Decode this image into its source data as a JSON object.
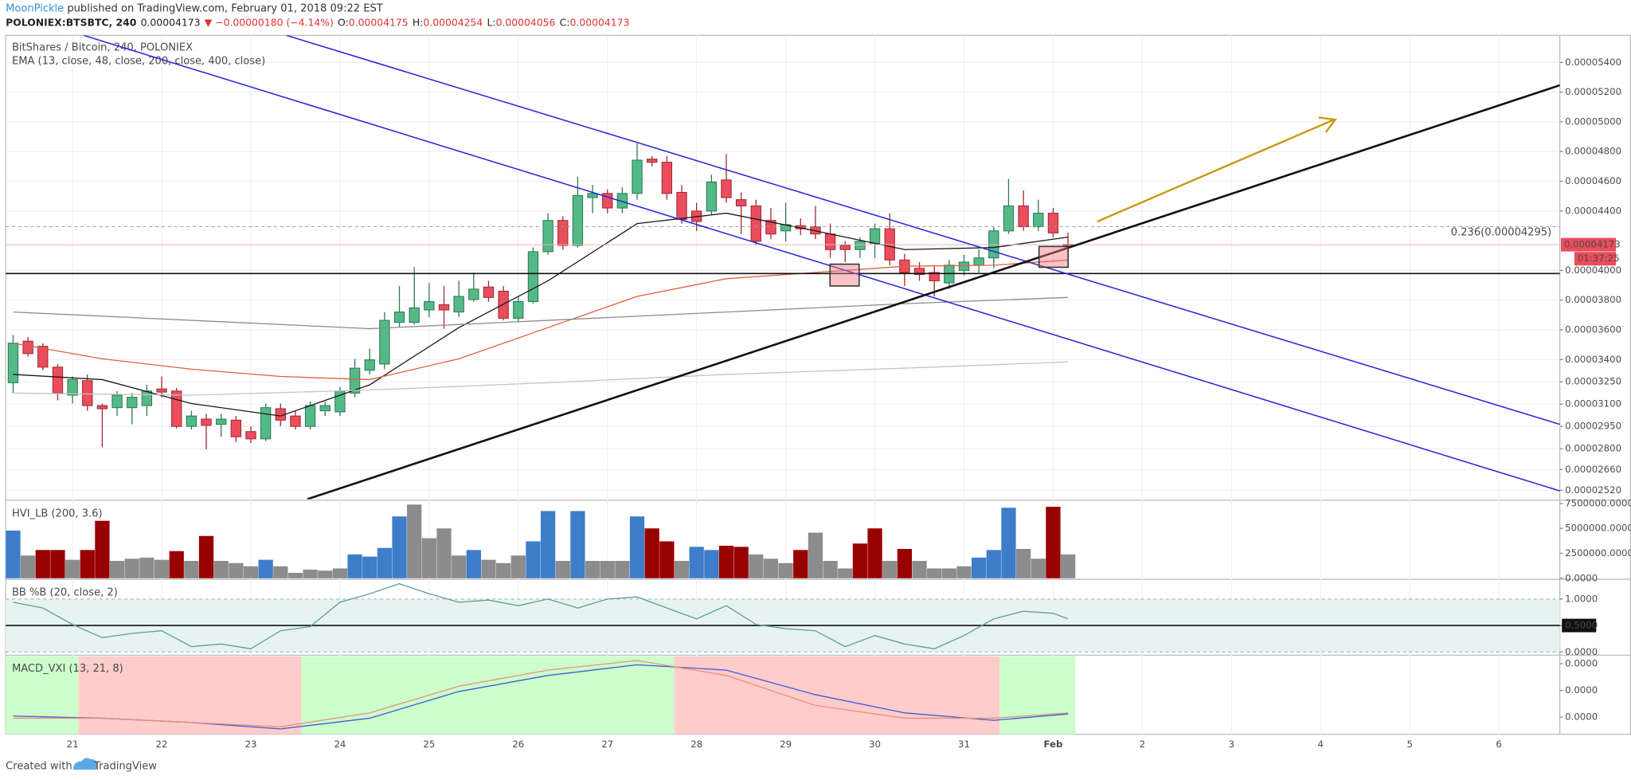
{
  "header": {
    "author": "MoonPickle",
    "published": " published on TradingView.com, February 01, 2018 09:22 EST",
    "symbol": "POLONIEX:BTSBTC, 240",
    "last": "0.00004173",
    "change": "▼ −0.00000180 (−4.14%)",
    "ohlc": [
      {
        "label": "O:",
        "value": "0.00004175"
      },
      {
        "label": "H:",
        "value": "0.00004254"
      },
      {
        "label": "L:",
        "value": "0.00004056"
      },
      {
        "label": "C:",
        "value": "0.00004173"
      }
    ]
  },
  "footer": {
    "created": "Created with",
    "brand": "TradingView"
  },
  "chart_data": [
    {
      "type": "candlestick",
      "title": "BitShares / Bitcoin, 240, POLONIEX",
      "subtitle": "EMA (13, close, 48, close, 200, close, 400, close)",
      "open": [
        3.244e-05,
        3.524e-05,
        3.489e-05,
        3.349e-05,
        3.16e-05,
        3.258e-05,
        3.09e-05,
        3.076e-05,
        3.076e-05,
        3.09e-05,
        3.202e-05,
        3.188e-05,
        2.95e-05,
        2.999e-05,
        2.964e-05,
        2.992e-05,
        2.915e-05,
        2.866e-05,
        3.069e-05,
        3.02e-05,
        2.95e-05,
        3.055e-05,
        3.048e-05,
        3.174e-05,
        3.328e-05,
        3.37e-05,
        3.65e-05,
        3.65e-05,
        3.734e-05,
        3.769e-05,
        3.72e-05,
        3.804e-05,
        3.888e-05,
        3.86e-05,
        3.678e-05,
        3.79e-05,
        4.126e-05,
        4.336e-05,
        4.168e-05,
        4.49e-05,
        4.518e-05,
        4.42e-05,
        4.518e-05,
        4.749e-05,
        4.728e-05,
        4.525e-05,
        4.399e-05,
        4.399e-05,
        4.609e-05,
        4.476e-05,
        4.434e-05,
        4.336e-05,
        4.266e-05,
        4.301e-05,
        4.294e-05,
        4.245e-05,
        4.168e-05,
        4.14e-05,
        4.182e-05,
        4.28e-05,
        4.07e-05,
        4.014e-05,
        3.986e-05,
        3.916e-05,
        4e-05,
        4.035e-05,
        4.084e-05,
        4.266e-05,
        4.434e-05,
        4.294e-05,
        4.385e-05,
        4.175e-05
      ],
      "high": [
        3.566e-05,
        3.552e-05,
        3.51e-05,
        3.37e-05,
        3.286e-05,
        3.3e-05,
        3.104e-05,
        3.188e-05,
        3.174e-05,
        3.23e-05,
        3.286e-05,
        3.209e-05,
        3.055e-05,
        3.034e-05,
        3.034e-05,
        3.02e-05,
        2.95e-05,
        3.104e-05,
        3.104e-05,
        3.055e-05,
        3.118e-05,
        3.118e-05,
        3.216e-05,
        3.405e-05,
        3.475e-05,
        3.72e-05,
        3.895e-05,
        4.021e-05,
        3.916e-05,
        3.895e-05,
        3.93e-05,
        3.986e-05,
        3.93e-05,
        3.895e-05,
        3.825e-05,
        4.154e-05,
        4.385e-05,
        4.364e-05,
        4.63e-05,
        4.574e-05,
        4.546e-05,
        4.56e-05,
        4.854e-05,
        4.77e-05,
        4.77e-05,
        4.574e-05,
        4.455e-05,
        4.644e-05,
        4.784e-05,
        4.525e-05,
        4.476e-05,
        4.42e-05,
        4.455e-05,
        4.35e-05,
        4.434e-05,
        4.315e-05,
        4.196e-05,
        4.224e-05,
        4.315e-05,
        4.385e-05,
        4.112e-05,
        4.056e-05,
        4.035e-05,
        4.07e-05,
        4.105e-05,
        4.14e-05,
        4.294e-05,
        4.616e-05,
        4.539e-05,
        4.476e-05,
        4.42e-05,
        4.254e-05
      ],
      "low": [
        3.174e-05,
        3.419e-05,
        3.328e-05,
        3.125e-05,
        3.104e-05,
        3.055e-05,
        2.81e-05,
        3.02e-05,
        2.964e-05,
        3.02e-05,
        3.146e-05,
        2.936e-05,
        2.929e-05,
        2.796e-05,
        2.88e-05,
        2.845e-05,
        2.838e-05,
        2.852e-05,
        2.95e-05,
        2.929e-05,
        2.929e-05,
        3.02e-05,
        3.02e-05,
        3.146e-05,
        3.3e-05,
        3.335e-05,
        3.615e-05,
        3.636e-05,
        3.685e-05,
        3.608e-05,
        3.685e-05,
        3.79e-05,
        3.79e-05,
        3.664e-05,
        3.65e-05,
        3.776e-05,
        4.105e-05,
        4.14e-05,
        4.154e-05,
        4.385e-05,
        4.385e-05,
        4.385e-05,
        4.476e-05,
        4.7e-05,
        4.476e-05,
        4.315e-05,
        4.266e-05,
        4.371e-05,
        4.455e-05,
        4.245e-05,
        4.168e-05,
        4.21e-05,
        4.196e-05,
        4.238e-05,
        4.21e-05,
        4.084e-05,
        4.056e-05,
        4.084e-05,
        4.084e-05,
        4.035e-05,
        3.895e-05,
        3.93e-05,
        3.825e-05,
        3.874e-05,
        3.965e-05,
        3.986e-05,
        4.014e-05,
        4.245e-05,
        4.266e-05,
        4.266e-05,
        4.224e-05,
        4.056e-05
      ],
      "close": [
        3.51e-05,
        3.44e-05,
        3.349e-05,
        3.174e-05,
        3.265e-05,
        3.09e-05,
        3.069e-05,
        3.16e-05,
        3.146e-05,
        3.188e-05,
        3.181e-05,
        2.95e-05,
        3.02e-05,
        2.957e-05,
        2.999e-05,
        2.88e-05,
        2.866e-05,
        3.076e-05,
        2.992e-05,
        2.95e-05,
        3.09e-05,
        3.09e-05,
        3.188e-05,
        3.342e-05,
        3.398e-05,
        3.664e-05,
        3.72e-05,
        3.748e-05,
        3.79e-05,
        3.734e-05,
        3.825e-05,
        3.874e-05,
        3.818e-05,
        3.678e-05,
        3.79e-05,
        4.126e-05,
        4.336e-05,
        4.168e-05,
        4.504e-05,
        4.518e-05,
        4.42e-05,
        4.518e-05,
        4.742e-05,
        4.728e-05,
        4.518e-05,
        4.343e-05,
        4.329e-05,
        4.595e-05,
        4.49e-05,
        4.434e-05,
        4.196e-05,
        4.245e-05,
        4.308e-05,
        4.28e-05,
        4.245e-05,
        4.14e-05,
        4.14e-05,
        4.196e-05,
        4.28e-05,
        4.07e-05,
        3.986e-05,
        3.972e-05,
        3.93e-05,
        4.035e-05,
        4.056e-05,
        4.084e-05,
        4.266e-05,
        4.434e-05,
        4.294e-05,
        4.385e-05,
        4.252e-05,
        4.173e-05
      ],
      "up_color": "#53b987",
      "down_color": "#eb4d5c",
      "overlays": [
        {
          "color": "#1a1a1a",
          "x": [
            0,
            6,
            12,
            18,
            24,
            30,
            36,
            42,
            48,
            54,
            60,
            66,
            71
          ],
          "values": [
            3.3e-05,
            3.265e-05,
            3.104e-05,
            3.02e-05,
            3.23e-05,
            3.615e-05,
            3.93e-05,
            4.315e-05,
            4.385e-05,
            4.266e-05,
            4.14e-05,
            4.154e-05,
            4.224e-05
          ]
        },
        {
          "color": "#e0603c",
          "x": [
            0,
            6,
            12,
            18,
            24,
            30,
            36,
            42,
            48,
            54,
            60,
            66,
            71
          ],
          "values": [
            3.51e-05,
            3.405e-05,
            3.335e-05,
            3.286e-05,
            3.265e-05,
            3.405e-05,
            3.615e-05,
            3.825e-05,
            3.944e-05,
            3.986e-05,
            4.028e-05,
            4.035e-05,
            4.07e-05
          ]
        },
        {
          "color": "#8c8c8c",
          "x": [
            0,
            12,
            24,
            36,
            48,
            60,
            71
          ],
          "values": [
            3.72e-05,
            3.664e-05,
            3.608e-05,
            3.664e-05,
            3.72e-05,
            3.776e-05,
            3.818e-05
          ]
        },
        {
          "color": "#c4c4c4",
          "x": [
            0,
            12,
            24,
            36,
            48,
            60,
            71
          ],
          "values": [
            3.174e-05,
            3.16e-05,
            3.195e-05,
            3.244e-05,
            3.3e-05,
            3.342e-05,
            3.384e-05
          ]
        }
      ],
      "annotations": [
        {
          "text": "0.236(0.00004295)",
          "value": 4.295e-05
        }
      ],
      "last_price_label": "0.00004173",
      "countdown": "01:37:25",
      "xlim": [
        -0.5,
        104.1
      ],
      "xticks": [
        {
          "value": 4,
          "label": "21"
        },
        {
          "value": 10,
          "label": "22"
        },
        {
          "value": 16,
          "label": "23"
        },
        {
          "value": 22,
          "label": "24"
        },
        {
          "value": 28,
          "label": "25"
        },
        {
          "value": 34,
          "label": "26"
        },
        {
          "value": 40,
          "label": "27"
        },
        {
          "value": 46,
          "label": "28"
        },
        {
          "value": 52,
          "label": "29"
        },
        {
          "value": 58,
          "label": "30"
        },
        {
          "value": 64,
          "label": "31"
        },
        {
          "value": 70,
          "label": "Feb"
        },
        {
          "value": 76,
          "label": "2"
        },
        {
          "value": 82,
          "label": "3"
        },
        {
          "value": 88,
          "label": "4"
        },
        {
          "value": 94,
          "label": "5"
        },
        {
          "value": 100,
          "label": "6"
        }
      ],
      "ylim": [
        2.46e-05,
        5.582e-05
      ],
      "yticks": [
        {
          "value": 5.4e-05,
          "label": "0.00005400"
        },
        {
          "value": 5.2e-05,
          "label": "0.00005200"
        },
        {
          "value": 5e-05,
          "label": "0.00005000"
        },
        {
          "value": 4.8e-05,
          "label": "0.00004800"
        },
        {
          "value": 4.6e-05,
          "label": "0.00004600"
        },
        {
          "value": 4.4e-05,
          "label": "0.00004400"
        },
        {
          "value": 4e-05,
          "label": "0.00004000"
        },
        {
          "value": 3.8e-05,
          "label": "0.00003800"
        },
        {
          "value": 3.6e-05,
          "label": "0.00003600"
        },
        {
          "value": 3.4e-05,
          "label": "0.00003400"
        },
        {
          "value": 3.25e-05,
          "label": "0.00003250"
        },
        {
          "value": 3.1e-05,
          "label": "0.00003100"
        },
        {
          "value": 2.95e-05,
          "label": "0.00002950"
        },
        {
          "value": 2.8e-05,
          "label": "0.00002800"
        },
        {
          "value": 2.66e-05,
          "label": "0.00002660"
        },
        {
          "value": 2.52e-05,
          "label": "0.00002520"
        }
      ],
      "grid": true
    },
    {
      "type": "bar",
      "title": "HVI_LB (200, 3.6)",
      "values": [
        4780000,
        2280000,
        2830000,
        2830000,
        1850000,
        2830000,
        5760000,
        1740000,
        1960000,
        2070000,
        1850000,
        2720000,
        1740000,
        4240000,
        1740000,
        1520000,
        1200000,
        1850000,
        1200000,
        540000,
        870000,
        760000,
        980000,
        2390000,
        2170000,
        3040000,
        6200000,
        7390000,
        4020000,
        5000000,
        2280000,
        2830000,
        1850000,
        1520000,
        2280000,
        3700000,
        6740000,
        1740000,
        6740000,
        1740000,
        1740000,
        1740000,
        6200000,
        5000000,
        3700000,
        1740000,
        3150000,
        2830000,
        3260000,
        3150000,
        2390000,
        1960000,
        1520000,
        2830000,
        4570000,
        1740000,
        980000,
        3480000,
        5000000,
        1740000,
        2940000,
        1740000,
        980000,
        980000,
        1200000,
        2070000,
        2830000,
        7070000,
        2940000,
        1960000,
        7170000,
        2390000
      ],
      "colors": [
        "#3d7dca",
        "#8c8c8c",
        "#990000",
        "#990000",
        "#8c8c8c",
        "#990000",
        "#990000",
        "#8c8c8c",
        "#8c8c8c",
        "#8c8c8c",
        "#8c8c8c",
        "#990000",
        "#8c8c8c",
        "#990000",
        "#8c8c8c",
        "#8c8c8c",
        "#8c8c8c",
        "#3d7dca",
        "#8c8c8c",
        "#8c8c8c",
        "#8c8c8c",
        "#8c8c8c",
        "#8c8c8c",
        "#3d7dca",
        "#3d7dca",
        "#3d7dca",
        "#3d7dca",
        "#8c8c8c",
        "#8c8c8c",
        "#8c8c8c",
        "#8c8c8c",
        "#3d7dca",
        "#8c8c8c",
        "#8c8c8c",
        "#8c8c8c",
        "#3d7dca",
        "#3d7dca",
        "#8c8c8c",
        "#3d7dca",
        "#8c8c8c",
        "#8c8c8c",
        "#8c8c8c",
        "#3d7dca",
        "#990000",
        "#990000",
        "#8c8c8c",
        "#3d7dca",
        "#3d7dca",
        "#990000",
        "#990000",
        "#8c8c8c",
        "#8c8c8c",
        "#8c8c8c",
        "#990000",
        "#8c8c8c",
        "#8c8c8c",
        "#8c8c8c",
        "#990000",
        "#990000",
        "#8c8c8c",
        "#990000",
        "#8c8c8c",
        "#8c8c8c",
        "#8c8c8c",
        "#8c8c8c",
        "#3d7dca",
        "#3d7dca",
        "#3d7dca",
        "#8c8c8c",
        "#8c8c8c",
        "#990000",
        "#8c8c8c"
      ],
      "ylim": [
        0,
        7720000
      ],
      "yticks": [
        {
          "value": 7500000,
          "label": "7500000.0000"
        },
        {
          "value": 5000000,
          "label": "5000000.0000"
        },
        {
          "value": 2500000,
          "label": "2500000.0000"
        },
        {
          "value": 0,
          "label": "0.0000"
        }
      ]
    },
    {
      "type": "line",
      "title": "BB %B (20, close, 2)",
      "color": "#5f9e9e",
      "band_color": "#e6f3f1",
      "midline": 0.5,
      "x": [
        0,
        2,
        4,
        6,
        8,
        10,
        12,
        14,
        16,
        18,
        20,
        22,
        24,
        26,
        28,
        30,
        32,
        34,
        36,
        38,
        40,
        42,
        44,
        46,
        48,
        50,
        52,
        54,
        56,
        58,
        60,
        62,
        64,
        66,
        68,
        70,
        71
      ],
      "values": [
        0.94,
        0.83,
        0.52,
        0.27,
        0.35,
        0.4,
        0.1,
        0.15,
        0.06,
        0.4,
        0.48,
        0.94,
        1.1,
        1.29,
        1.1,
        0.94,
        0.98,
        0.875,
        1.0,
        0.83,
        1.0,
        1.04,
        0.83,
        0.625,
        0.875,
        0.52,
        0.44,
        0.4,
        0.1,
        0.31,
        0.15,
        0.06,
        0.31,
        0.625,
        0.77,
        0.73,
        0.625
      ],
      "ylim": [
        -0.042,
        1.354
      ],
      "yticks": [
        {
          "value": 1,
          "label": "1.0000"
        },
        {
          "value": 0.5,
          "label": "0.5000"
        },
        {
          "value": 0,
          "label": "0.0000"
        }
      ]
    },
    {
      "type": "line",
      "title": "MACD_VXI (13, 21, 8)",
      "zones": [
        {
          "start": -0.5,
          "end": 4.4,
          "color": "#ccffcc"
        },
        {
          "start": 4.4,
          "end": 19.4,
          "color": "#ffcccc"
        },
        {
          "start": 19.4,
          "end": 44.5,
          "color": "#ccffcc"
        },
        {
          "start": 44.5,
          "end": 66.4,
          "color": "#ffcccc"
        },
        {
          "start": 66.4,
          "end": 71.5,
          "color": "#ccffcc"
        }
      ],
      "series": [
        {
          "color": "#3a5bd9",
          "x": [
            0,
            6,
            12,
            18,
            24,
            30,
            36,
            42,
            48,
            54,
            60,
            66,
            71
          ],
          "values": [
            8e-08,
            -8e-08,
            -4e-07,
            -8.8e-07,
            -8e-08,
            1.92e-06,
            3.12e-06,
            3.92e-06,
            3.52e-06,
            1.68e-06,
            3.2e-07,
            -2.4e-07,
            2.4e-07
          ]
        },
        {
          "color": "#e8907a",
          "x": [
            0,
            6,
            12,
            18,
            24,
            30,
            36,
            42,
            48,
            54,
            60,
            66,
            71
          ],
          "values": [
            -8e-08,
            -8e-08,
            -4e-07,
            -7.2e-07,
            3.2e-07,
            2.32e-06,
            3.52e-06,
            4.24e-06,
            3.12e-06,
            8.8e-07,
            -8e-08,
            -8e-08,
            3.2e-07
          ]
        }
      ],
      "ylim": [
        -1.28e-06,
        4.56e-06
      ],
      "yticks": [
        {
          "value": 4e-06,
          "label": "0.0000"
        },
        {
          "value": 2e-06,
          "label": "0.0000"
        },
        {
          "value": 0,
          "label": "0.0000"
        }
      ]
    }
  ]
}
